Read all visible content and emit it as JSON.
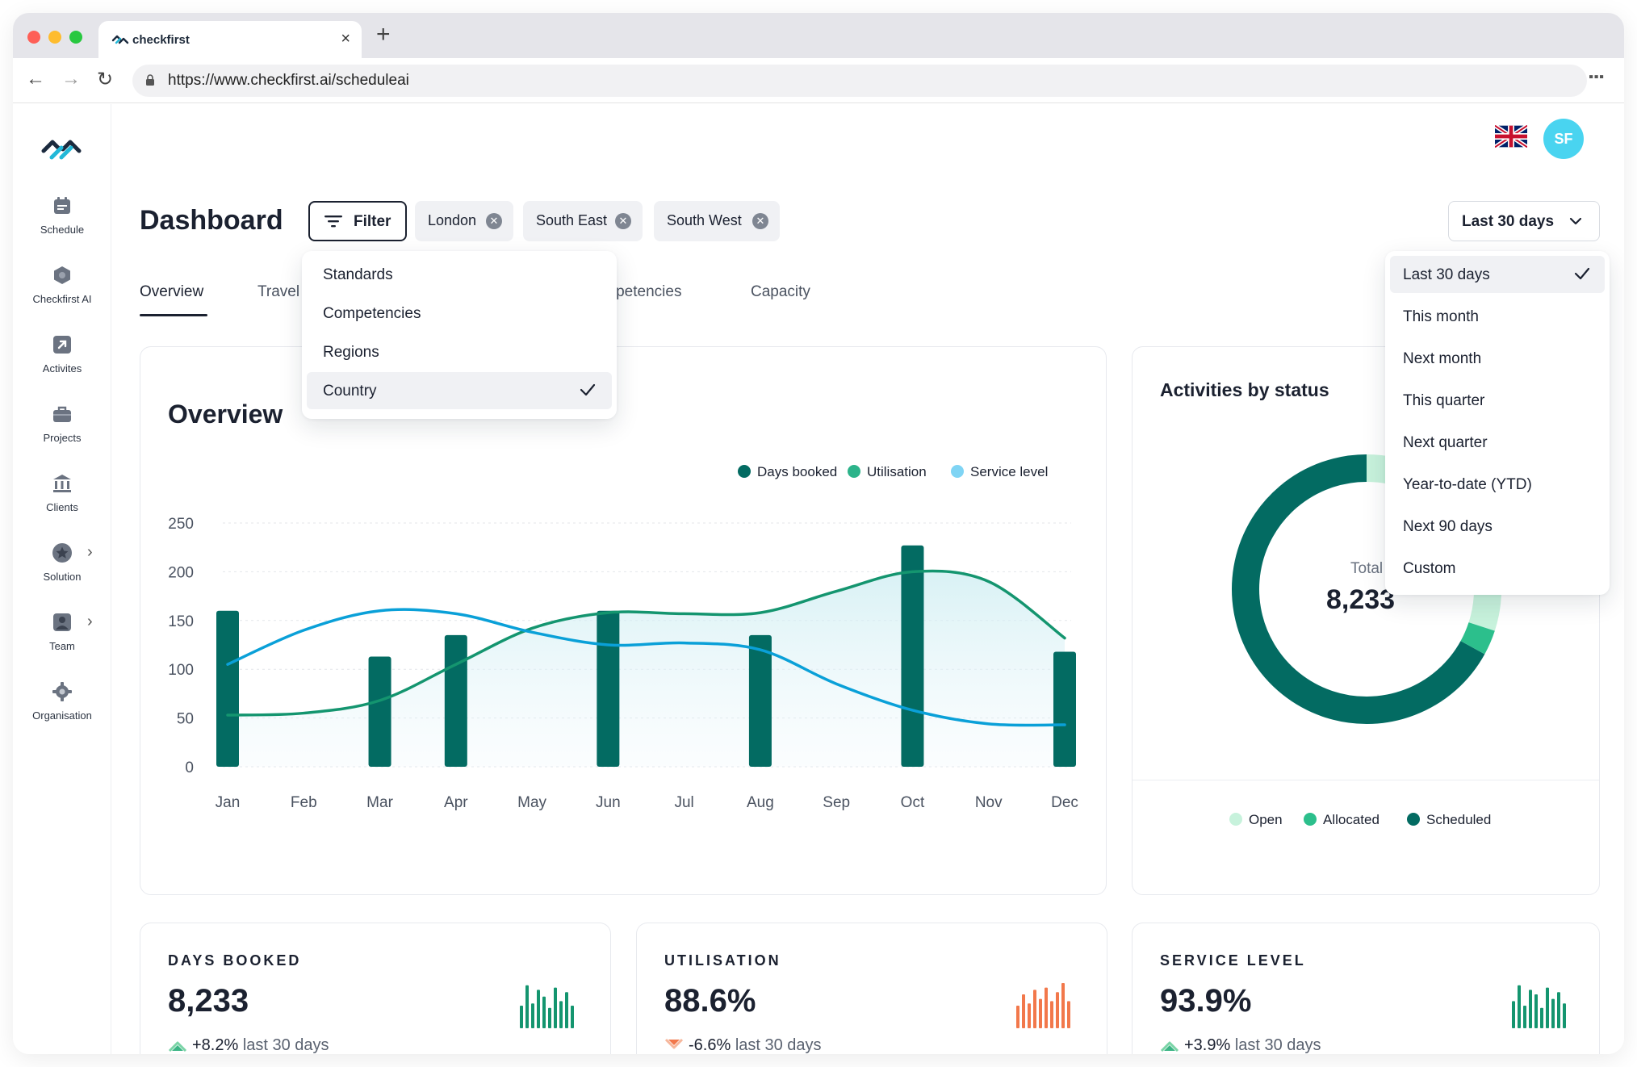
{
  "browser": {
    "tab_title": "checkfirst",
    "url": "https://www.checkfirst.ai/scheduleai"
  },
  "sidebar": {
    "items": [
      {
        "label": "Schedule",
        "icon": "calendar-icon"
      },
      {
        "label": "Checkfirst AI",
        "icon": "hexagon-icon"
      },
      {
        "label": "Activites",
        "icon": "arrow-up-right-icon"
      },
      {
        "label": "Projects",
        "icon": "briefcase-icon"
      },
      {
        "label": "Clients",
        "icon": "bank-icon"
      },
      {
        "label": "Solution",
        "icon": "star-badge-icon"
      },
      {
        "label": "Team",
        "icon": "person-icon"
      },
      {
        "label": "Organisation",
        "icon": "gear-icon"
      }
    ]
  },
  "header": {
    "avatar_initials": "SF",
    "title": "Dashboard",
    "filter_label": "Filter",
    "chips": [
      "London",
      "South East",
      "South West"
    ],
    "period_label": "Last 30 days"
  },
  "tabs": {
    "overview": "Overview",
    "travel": "Travel",
    "competencies": "Competencies",
    "capacity": "Capacity"
  },
  "filter_menu": {
    "items": [
      "Standards",
      "Competencies",
      "Regions",
      "Country"
    ],
    "selected": "Country"
  },
  "period_menu": {
    "items": [
      "Last 30 days",
      "This month",
      "Next month",
      "This quarter",
      "Next quarter",
      "Year-to-date (YTD)",
      "Next 90 days",
      "Custom"
    ],
    "selected": "Last 30 days"
  },
  "overview": {
    "title": "Overview"
  },
  "chart_data": [
    {
      "type": "bar",
      "title": "Overview",
      "categories": [
        "Jan",
        "Feb",
        "Mar",
        "Apr",
        "May",
        "Jun",
        "Jul",
        "Aug",
        "Sep",
        "Oct",
        "Nov",
        "Dec"
      ],
      "ylim": [
        0,
        250
      ],
      "yticks": [
        0,
        50,
        100,
        150,
        200,
        250
      ],
      "grid": true,
      "legend": "top-right",
      "series": [
        {
          "name": "Days booked",
          "kind": "bar",
          "color": "#036b62",
          "values": [
            160,
            null,
            113,
            135,
            null,
            160,
            null,
            135,
            null,
            227,
            null,
            118
          ]
        },
        {
          "name": "Utilisation",
          "kind": "line",
          "color": "#14956f",
          "values": [
            53,
            55,
            68,
            105,
            142,
            158,
            157,
            158,
            180,
            200,
            190,
            132
          ]
        },
        {
          "name": "Service level",
          "kind": "line",
          "color": "#0aa0d8",
          "values": [
            105,
            140,
            160,
            157,
            138,
            125,
            127,
            120,
            85,
            58,
            44,
            43
          ]
        }
      ]
    },
    {
      "type": "pie",
      "title": "Activities by status",
      "donut": true,
      "legend": "bottom",
      "total_label": "Total",
      "total_value": "8,233",
      "series": [
        {
          "name": "Open",
          "color": "#c7f2dc",
          "value": 30
        },
        {
          "name": "Allocated",
          "color": "#2cbf8c",
          "value": 3
        },
        {
          "name": "Scheduled",
          "color": "#036b62",
          "value": 67
        }
      ]
    }
  ],
  "kpis": [
    {
      "label": "DAYS BOOKED",
      "value": "8,233",
      "trend": "+8.2%",
      "period": "last 30 days",
      "direction": "up",
      "color": "#14956f",
      "spark": [
        0.5,
        0.95,
        0.55,
        0.85,
        0.7,
        0.45,
        0.9,
        0.6,
        0.8,
        0.5
      ]
    },
    {
      "label": "UTILISATION",
      "value": "88.6%",
      "trend": "-6.6%",
      "period": "last 30 days",
      "direction": "down",
      "color": "#f2784b",
      "spark": [
        0.5,
        0.75,
        0.55,
        0.85,
        0.65,
        0.9,
        0.6,
        0.8,
        1.0,
        0.6
      ]
    },
    {
      "label": "SERVICE LEVEL",
      "value": "93.9%",
      "trend": "+3.9%",
      "period": "last 30 days",
      "direction": "up",
      "color": "#14956f",
      "spark": [
        0.6,
        0.95,
        0.5,
        0.85,
        0.75,
        0.45,
        0.9,
        0.65,
        0.8,
        0.55
      ]
    }
  ]
}
